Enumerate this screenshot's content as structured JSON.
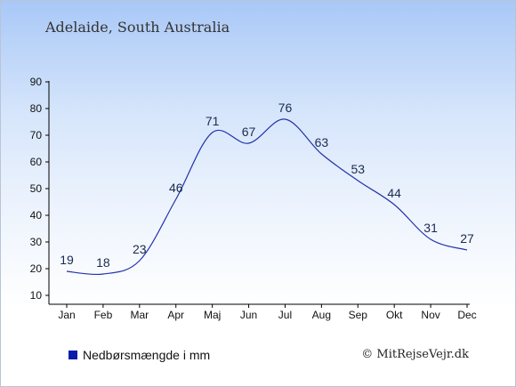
{
  "header": {
    "title": "Adelaide, South Australia"
  },
  "legend": {
    "label": "Nedbørsmængde i mm",
    "color": "#0b1ca8"
  },
  "footer": {
    "copyright": "© MitRejseVejr.dk"
  },
  "chart_data": {
    "type": "line",
    "title": "Adelaide, South Australia",
    "categories": [
      "Jan",
      "Feb",
      "Mar",
      "Apr",
      "Maj",
      "Jun",
      "Jul",
      "Aug",
      "Sep",
      "Okt",
      "Nov",
      "Dec"
    ],
    "series": [
      {
        "name": "Nedbørsmængde i mm",
        "values": [
          19,
          18,
          23,
          46,
          71,
          67,
          76,
          63,
          53,
          44,
          31,
          27
        ],
        "color": "#2233aa"
      }
    ],
    "yticks": [
      10,
      20,
      30,
      40,
      50,
      60,
      70,
      80,
      90
    ],
    "ylim": [
      10,
      90
    ],
    "grid": false,
    "legend_position": "bottom-left"
  }
}
